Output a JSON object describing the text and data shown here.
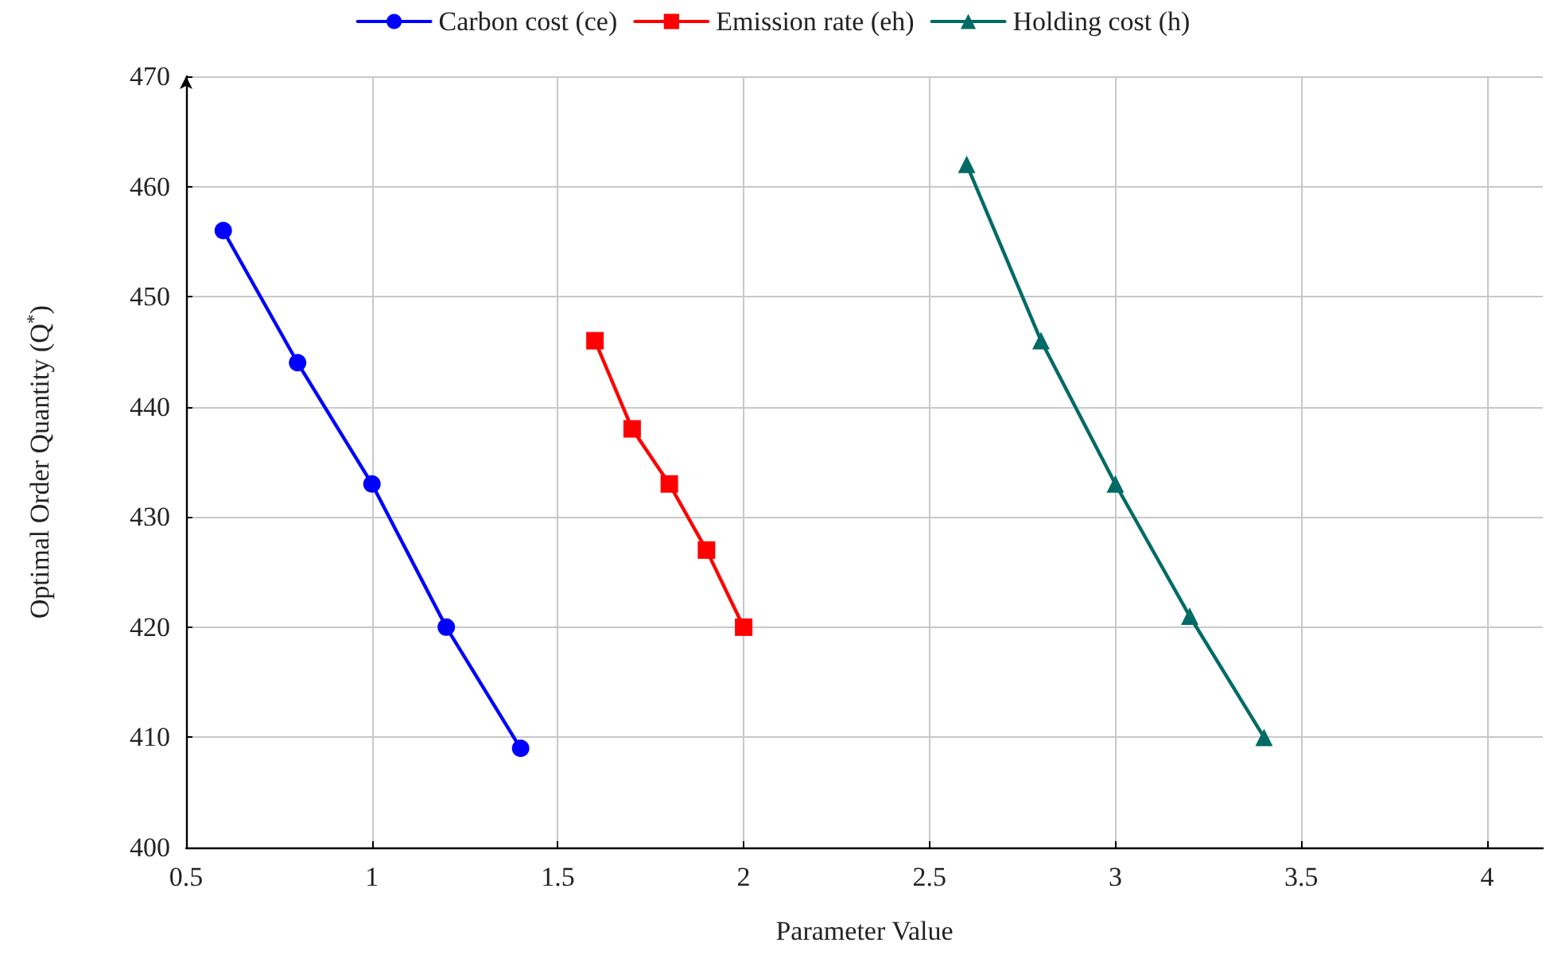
{
  "chart_data": {
    "type": "line",
    "xlabel": "Parameter Value",
    "ylabel": "Optimal Order Quantity (Q$^{*}$)",
    "xlim": [
      0.5,
      4.15
    ],
    "xticks": [
      0.5,
      1,
      1.5,
      2,
      2.5,
      3,
      3.5,
      4
    ],
    "ylim": [
      400,
      470
    ],
    "yticks": [
      400,
      410,
      420,
      430,
      440,
      450,
      460,
      470
    ],
    "grid": true,
    "legend": "top",
    "line_style": "solid",
    "series": [
      {
        "name": "Carbon cost (ce)",
        "color": "#0000ff",
        "marker": "circle",
        "x": [
          0.6,
          0.8,
          1.0,
          1.2,
          1.4
        ],
        "values": [
          456,
          444,
          433,
          420,
          409
        ]
      },
      {
        "name": "Emission rate (eh)",
        "color": "#ff0000",
        "marker": "square",
        "x": [
          1.6,
          1.7,
          1.8,
          1.9,
          2.0
        ],
        "values": [
          446,
          438,
          433,
          427,
          420
        ]
      },
      {
        "name": "Holding cost (h)",
        "color": "#006b66",
        "marker": "triangle",
        "x": [
          2.6,
          2.8,
          3.0,
          3.2,
          3.4
        ],
        "values": [
          462,
          446,
          433,
          421,
          410
        ]
      }
    ]
  }
}
